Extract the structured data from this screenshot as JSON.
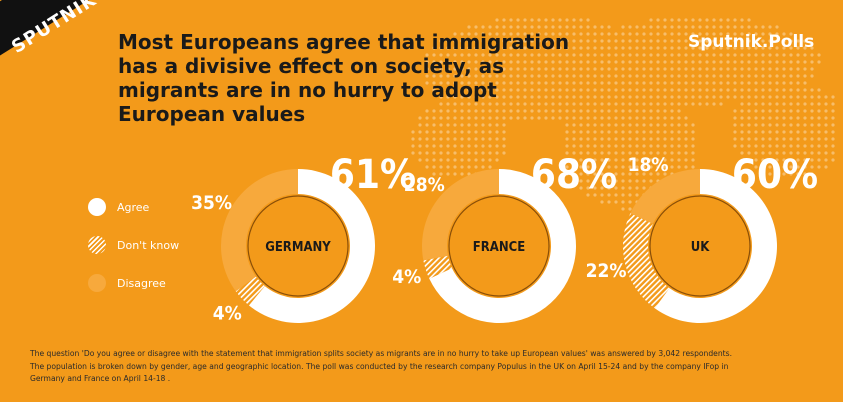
{
  "brand": {
    "logo_text": "SPUTNIK",
    "polls_label": "Sputnik.Polls"
  },
  "title": "Most Europeans agree that immigration has a divisive effect on society, as migrants are in no hurry to adopt European values",
  "legend": [
    {
      "label": "Agree",
      "color": "#ffffff",
      "pattern": "solid"
    },
    {
      "label": "Don't know",
      "color": "#ffffff",
      "pattern": "hatched"
    },
    {
      "label": "Disagree",
      "color": "#f7a93c",
      "pattern": "solid"
    }
  ],
  "chart_data": [
    {
      "type": "pie",
      "title": "GERMANY",
      "slices": [
        {
          "label": "Agree",
          "value": 61,
          "display": "61%"
        },
        {
          "label": "Don't know",
          "value": 4,
          "display": "4%"
        },
        {
          "label": "Disagree",
          "value": 35,
          "display": "35%"
        }
      ]
    },
    {
      "type": "pie",
      "title": "FRANCE",
      "slices": [
        {
          "label": "Agree",
          "value": 68,
          "display": "68%"
        },
        {
          "label": "Don't know",
          "value": 4,
          "display": "4%"
        },
        {
          "label": "Disagree",
          "value": 28,
          "display": "28%"
        }
      ]
    },
    {
      "type": "pie",
      "title": "UK",
      "slices": [
        {
          "label": "Agree",
          "value": 60,
          "display": "60%"
        },
        {
          "label": "Don't know",
          "value": 22,
          "display": "22%"
        },
        {
          "label": "Disagree",
          "value": 18,
          "display": "18%"
        }
      ]
    }
  ],
  "colors": {
    "background": "#f39a1a",
    "agree": "#ffffff",
    "disagree": "#f7a93c",
    "center": "#f39a1a",
    "center_ring": "#8a4f08",
    "title_text": "#1a1a1a"
  },
  "footnote": [
    "The question 'Do you agree or disagree with the statement that immigration splits society as migrants are in no hurry to take up European values' was answered by 3,042 respondents.",
    "The population is broken down by gender, age and geographic location. The poll was conducted by the research company Populus in the UK on April 15-24 and by the company IFop in",
    "Germany and France on April 14-18 ."
  ]
}
